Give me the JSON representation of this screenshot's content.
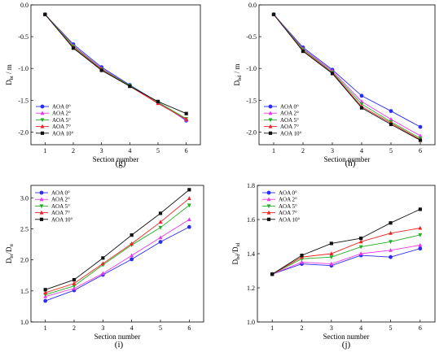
{
  "chart_data": [
    {
      "panel": "(g)",
      "type": "line",
      "xlabel": "Section number",
      "ylabel": "D",
      "ylabel_sub": "bt",
      "ylabel_suffix": " / m",
      "x": [
        1,
        2,
        3,
        4,
        5,
        6
      ],
      "xlim": [
        0.5,
        6.5
      ],
      "ylim": [
        -2.2,
        0.0
      ],
      "yticks": [
        "0.0",
        "-0.5",
        "-1.0",
        "-1.5",
        "-2.0"
      ],
      "ytick_values": [
        0.0,
        -0.5,
        -1.0,
        -1.5,
        -2.0
      ],
      "legend_position": "bottom-left",
      "series": [
        {
          "name": "AOA 0°",
          "values": [
            -0.15,
            -0.62,
            -0.98,
            -1.26,
            -1.53,
            -1.82
          ]
        },
        {
          "name": "AOA 2°",
          "values": [
            -0.15,
            -0.64,
            -1.0,
            -1.27,
            -1.54,
            -1.81
          ]
        },
        {
          "name": "AOA 5°",
          "values": [
            -0.15,
            -0.65,
            -1.01,
            -1.27,
            -1.53,
            -1.79
          ]
        },
        {
          "name": "AOA 7°",
          "values": [
            -0.15,
            -0.67,
            -1.02,
            -1.28,
            -1.55,
            -1.8
          ]
        },
        {
          "name": "AOA 10°",
          "values": [
            -0.15,
            -0.68,
            -1.03,
            -1.28,
            -1.52,
            -1.71
          ]
        }
      ]
    },
    {
      "panel": "(h)",
      "type": "line",
      "xlabel": "Section number",
      "ylabel": "D",
      "ylabel_sub": "bd",
      "ylabel_suffix": " / m",
      "x": [
        1,
        2,
        3,
        4,
        5,
        6
      ],
      "xlim": [
        0.5,
        6.5
      ],
      "ylim": [
        -2.2,
        0.0
      ],
      "yticks": [
        "0.0",
        "-0.5",
        "-1.0",
        "-1.5",
        "-2.0"
      ],
      "ytick_values": [
        0.0,
        -0.5,
        -1.0,
        -1.5,
        -2.0
      ],
      "legend_position": "bottom-left",
      "series": [
        {
          "name": "AOA 0°",
          "values": [
            -0.15,
            -0.67,
            -1.02,
            -1.43,
            -1.67,
            -1.92
          ]
        },
        {
          "name": "AOA 2°",
          "values": [
            -0.15,
            -0.69,
            -1.04,
            -1.52,
            -1.8,
            -2.06
          ]
        },
        {
          "name": "AOA 5°",
          "values": [
            -0.15,
            -0.7,
            -1.06,
            -1.56,
            -1.84,
            -2.1
          ]
        },
        {
          "name": "AOA 7°",
          "values": [
            -0.15,
            -0.72,
            -1.07,
            -1.6,
            -1.86,
            -2.12
          ]
        },
        {
          "name": "AOA 10°",
          "values": [
            -0.15,
            -0.73,
            -1.08,
            -1.62,
            -1.88,
            -2.13
          ]
        }
      ]
    },
    {
      "panel": "(i)",
      "type": "line",
      "xlabel": "Section number",
      "ylabel": "D",
      "ylabel_sub": "bt",
      "ylabel_mid": "/D",
      "ylabel_sub2": "tt",
      "x": [
        1,
        2,
        3,
        4,
        5,
        6
      ],
      "xlim": [
        0.5,
        6.5
      ],
      "ylim": [
        1.0,
        3.2
      ],
      "yticks": [
        "1.0",
        "1.5",
        "2.0",
        "2.5",
        "3.0"
      ],
      "ytick_values": [
        1.0,
        1.5,
        2.0,
        2.5,
        3.0
      ],
      "legend_position": "top-left",
      "series": [
        {
          "name": "AOA 0°",
          "values": [
            1.34,
            1.51,
            1.76,
            2.01,
            2.29,
            2.53
          ]
        },
        {
          "name": "AOA 2°",
          "values": [
            1.41,
            1.54,
            1.78,
            2.07,
            2.36,
            2.65
          ]
        },
        {
          "name": "AOA 5°",
          "values": [
            1.44,
            1.58,
            1.92,
            2.24,
            2.52,
            2.88
          ]
        },
        {
          "name": "AOA 7°",
          "values": [
            1.47,
            1.62,
            1.94,
            2.26,
            2.61,
            2.99
          ]
        },
        {
          "name": "AOA 10°",
          "values": [
            1.52,
            1.68,
            2.03,
            2.4,
            2.75,
            3.13
          ]
        }
      ]
    },
    {
      "panel": "(j)",
      "type": "line",
      "xlabel": "Section number",
      "ylabel": "D",
      "ylabel_sub": "bd",
      "ylabel_mid": "/D",
      "ylabel_sub2": "td",
      "x": [
        1,
        2,
        3,
        4,
        5,
        6
      ],
      "xlim": [
        0.5,
        6.5
      ],
      "ylim": [
        1.0,
        1.8
      ],
      "yticks": [
        "1.0",
        "1.2",
        "1.4",
        "1.6",
        "1.8"
      ],
      "ytick_values": [
        1.0,
        1.2,
        1.4,
        1.6,
        1.8
      ],
      "legend_position": "top-left",
      "series": [
        {
          "name": "AOA 0°",
          "values": [
            1.28,
            1.34,
            1.33,
            1.39,
            1.38,
            1.43
          ]
        },
        {
          "name": "AOA 2°",
          "values": [
            1.28,
            1.35,
            1.34,
            1.4,
            1.42,
            1.45
          ]
        },
        {
          "name": "AOA 5°",
          "values": [
            1.28,
            1.37,
            1.38,
            1.44,
            1.47,
            1.51
          ]
        },
        {
          "name": "AOA 7°",
          "values": [
            1.28,
            1.38,
            1.4,
            1.47,
            1.52,
            1.55
          ]
        },
        {
          "name": "AOA 10°",
          "values": [
            1.28,
            1.39,
            1.46,
            1.49,
            1.58,
            1.66
          ]
        }
      ]
    }
  ],
  "colors": [
    "#2b2bf2",
    "#e83ae8",
    "#22b022",
    "#ee2222",
    "#111111"
  ],
  "xtick_labels": [
    "1",
    "2",
    "3",
    "4",
    "5",
    "6"
  ]
}
